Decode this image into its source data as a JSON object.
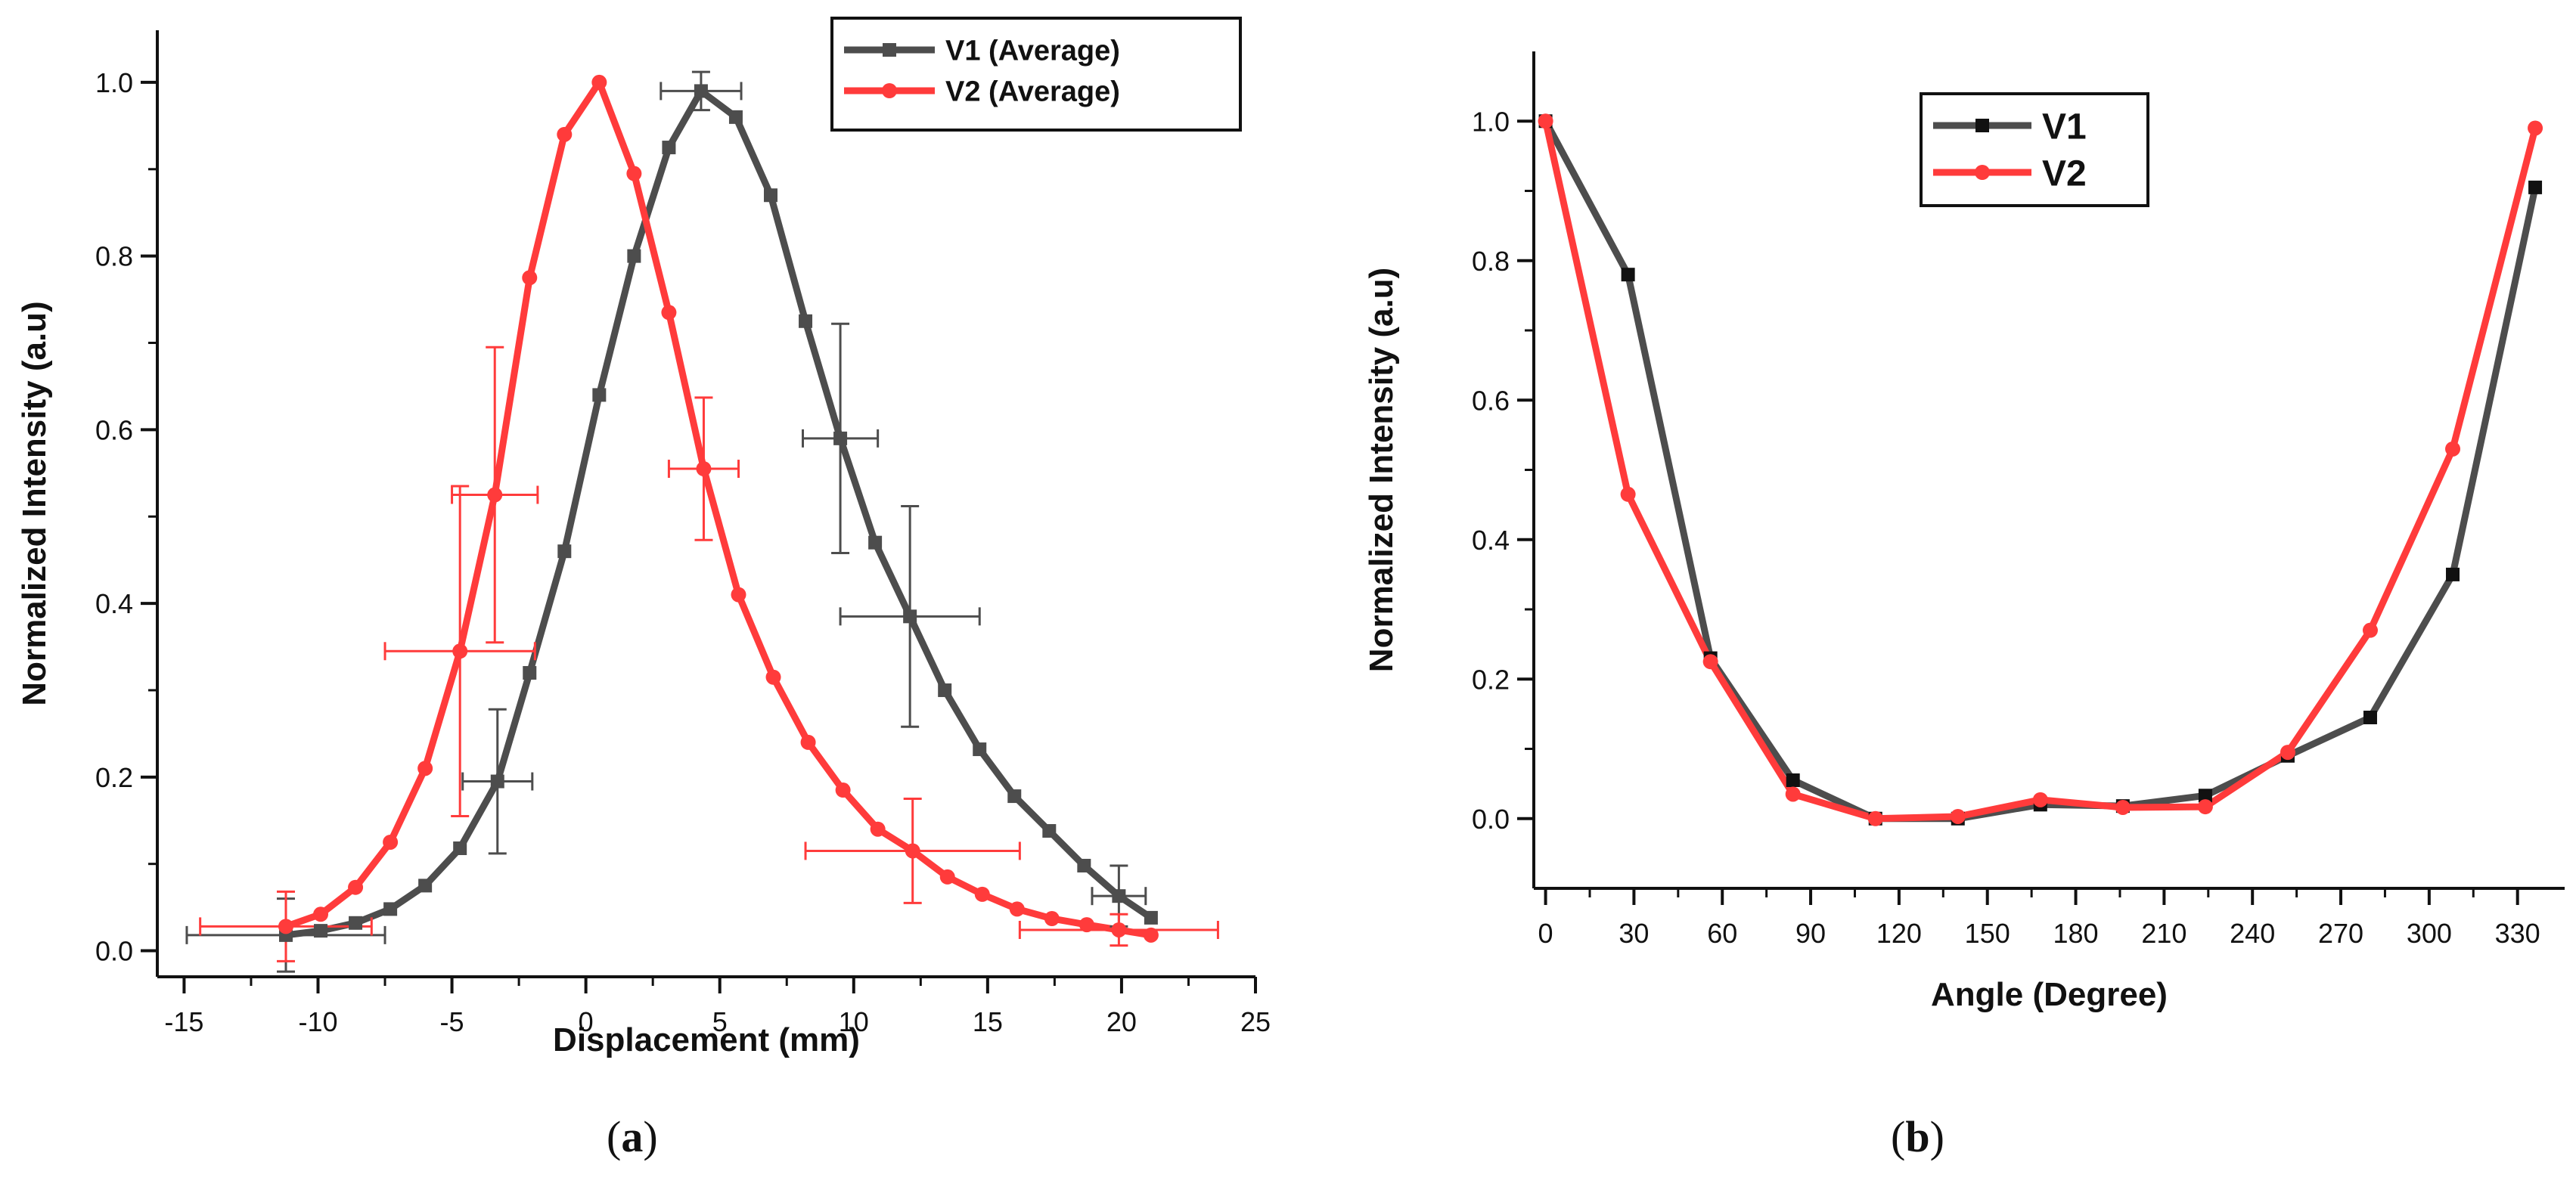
{
  "colors": {
    "v1": "#4d4d4d",
    "v2": "#ff3b3b",
    "axis": "#111111"
  },
  "chart_data": [
    {
      "panel": "a",
      "type": "line",
      "xlabel": "Displacement (mm)",
      "ylabel": "Normalized Intensity (a.u)",
      "xlim": [
        -16,
        25
      ],
      "ylim": [
        -0.03,
        1.06
      ],
      "xticks": [
        -15,
        -10,
        -5,
        0,
        5,
        10,
        15,
        20,
        25
      ],
      "yticks": [
        0.0,
        0.2,
        0.4,
        0.6,
        0.8,
        1.0
      ],
      "ytick_labels": [
        "0.0",
        "0.2",
        "0.4",
        "0.6",
        "0.8",
        "1.0"
      ],
      "legend": {
        "location": "top-right",
        "entries": [
          "V1 (Average)",
          "V2 (Average)"
        ]
      },
      "series": [
        {
          "name": "V1 (Average)",
          "color_key": "v1",
          "marker": "square",
          "x": [
            -11.2,
            -9.9,
            -8.6,
            -7.3,
            -6.0,
            -4.7,
            -3.3,
            -2.1,
            -0.8,
            0.5,
            1.8,
            3.1,
            4.3,
            5.6,
            6.9,
            8.2,
            9.5,
            10.8,
            12.1,
            13.4,
            14.7,
            16.0,
            17.3,
            18.6,
            19.9,
            21.1
          ],
          "y": [
            0.018,
            0.023,
            0.032,
            0.048,
            0.075,
            0.118,
            0.195,
            0.32,
            0.46,
            0.64,
            0.8,
            0.925,
            0.99,
            0.96,
            0.87,
            0.725,
            0.59,
            0.47,
            0.385,
            0.3,
            0.232,
            0.178,
            0.138,
            0.098,
            0.063,
            0.038
          ]
        },
        {
          "name": "V2 (Average)",
          "color_key": "v2",
          "marker": "circle",
          "x": [
            -11.2,
            -9.9,
            -8.6,
            -7.3,
            -6.0,
            -4.7,
            -3.4,
            -2.1,
            -0.8,
            0.5,
            1.8,
            3.1,
            4.4,
            5.7,
            7.0,
            8.3,
            9.6,
            10.9,
            12.2,
            13.5,
            14.8,
            16.1,
            17.4,
            18.7,
            19.9,
            21.1
          ],
          "y": [
            0.028,
            0.042,
            0.073,
            0.125,
            0.21,
            0.345,
            0.525,
            0.775,
            0.94,
            1.0,
            0.895,
            0.735,
            0.555,
            0.41,
            0.315,
            0.24,
            0.185,
            0.14,
            0.115,
            0.085,
            0.065,
            0.048,
            0.037,
            0.03,
            0.024,
            0.018
          ]
        }
      ],
      "error_bars": [
        {
          "series": "V1 (Average)",
          "x": -11.2,
          "y": 0.018,
          "xerr": 3.7,
          "yerr": 0.042
        },
        {
          "series": "V1 (Average)",
          "x": -3.3,
          "y": 0.195,
          "xerr": 1.3,
          "yerr": 0.083
        },
        {
          "series": "V1 (Average)",
          "x": 4.3,
          "y": 0.99,
          "xerr": 1.5,
          "yerr": 0.022
        },
        {
          "series": "V1 (Average)",
          "x": 9.5,
          "y": 0.59,
          "xerr": 1.4,
          "yerr": 0.132
        },
        {
          "series": "V1 (Average)",
          "x": 12.1,
          "y": 0.385,
          "xerr": 2.6,
          "yerr": 0.127
        },
        {
          "series": "V1 (Average)",
          "x": 19.9,
          "y": 0.063,
          "xerr": 1.0,
          "yerr": 0.035
        },
        {
          "series": "V2 (Average)",
          "x": -11.2,
          "y": 0.028,
          "xerr": 3.2,
          "yerr": 0.04
        },
        {
          "series": "V2 (Average)",
          "x": -4.7,
          "y": 0.345,
          "xerr": 2.8,
          "yerr": 0.19
        },
        {
          "series": "V2 (Average)",
          "x": -3.4,
          "y": 0.525,
          "xerr": 1.6,
          "yerr": 0.17
        },
        {
          "series": "V2 (Average)",
          "x": 4.4,
          "y": 0.555,
          "xerr": 1.3,
          "yerr": 0.082
        },
        {
          "series": "V2 (Average)",
          "x": 12.2,
          "y": 0.115,
          "xerr": 4.0,
          "yerr": 0.06
        },
        {
          "series": "V2 (Average)",
          "x": 19.9,
          "y": 0.024,
          "xerr": 3.7,
          "yerr": 0.018
        }
      ]
    },
    {
      "panel": "b",
      "type": "line",
      "xlabel": "Angle (Degree)",
      "ylabel": "Normalized Intensity (a.u)",
      "xlim": [
        -4,
        346
      ],
      "ylim": [
        -0.1,
        1.1
      ],
      "xticks": [
        0,
        30,
        60,
        90,
        120,
        150,
        180,
        210,
        240,
        270,
        300,
        330
      ],
      "yticks": [
        0.0,
        0.2,
        0.4,
        0.6,
        0.8,
        1.0
      ],
      "ytick_labels": [
        "0.0",
        "0.2",
        "0.4",
        "0.6",
        "0.8",
        "1.0"
      ],
      "legend": {
        "location": "top-center",
        "entries": [
          "V1",
          "V2"
        ]
      },
      "series": [
        {
          "name": "V1",
          "color_key": "v1",
          "marker": "square",
          "x": [
            0,
            28,
            56,
            84,
            112,
            140,
            168,
            196,
            224,
            252,
            280,
            308,
            336
          ],
          "y": [
            1.0,
            0.78,
            0.23,
            0.055,
            0.0,
            0.0,
            0.02,
            0.018,
            0.033,
            0.09,
            0.145,
            0.35,
            0.905
          ]
        },
        {
          "name": "V2",
          "color_key": "v2",
          "marker": "circle",
          "x": [
            0,
            28,
            56,
            84,
            112,
            140,
            168,
            196,
            224,
            252,
            280,
            308,
            336
          ],
          "y": [
            1.0,
            0.465,
            0.225,
            0.035,
            0.0,
            0.003,
            0.027,
            0.016,
            0.017,
            0.095,
            0.27,
            0.53,
            0.99
          ]
        }
      ]
    }
  ],
  "panel_labels": {
    "a": "a",
    "b": "b"
  }
}
